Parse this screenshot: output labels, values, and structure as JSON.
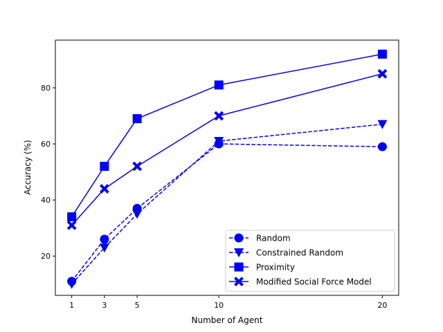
{
  "chart_data": {
    "type": "line",
    "title": "",
    "xlabel": "Number of Agent",
    "ylabel": "Accuracy (%)",
    "x": [
      1,
      3,
      5,
      10,
      20
    ],
    "xticks": [
      1,
      3,
      5,
      10,
      20
    ],
    "yticks": [
      20,
      40,
      60,
      80
    ],
    "xlim": [
      0,
      21
    ],
    "ylim": [
      6,
      97
    ],
    "grid": false,
    "legend_position": "lower-right",
    "color": "#0000ff",
    "series": [
      {
        "name": "Random",
        "marker": "circle",
        "linestyle": "dashed",
        "values": [
          11,
          26,
          37,
          60,
          59
        ]
      },
      {
        "name": "Constrained Random",
        "marker": "triangle-down",
        "linestyle": "dashed",
        "values": [
          10,
          23,
          35,
          61,
          67
        ]
      },
      {
        "name": "Proximity",
        "marker": "square",
        "linestyle": "solid",
        "values": [
          34,
          52,
          69,
          81,
          92
        ]
      },
      {
        "name": "Modified Social Force Model",
        "marker": "x-cross",
        "linestyle": "solid",
        "values": [
          31,
          44,
          52,
          70,
          85
        ]
      }
    ]
  }
}
